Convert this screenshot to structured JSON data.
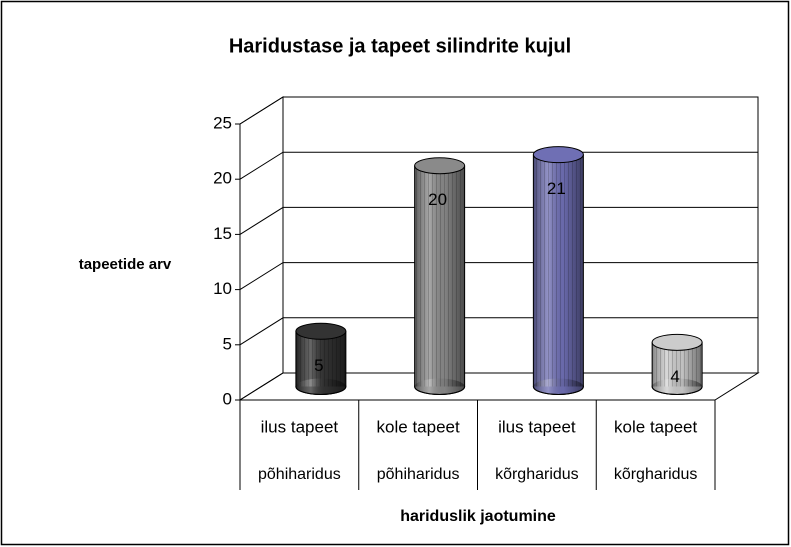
{
  "chart_data": {
    "type": "bar3d-cylinder",
    "title": "Haridustase ja tapeet silindrite kujul",
    "y_label": "tapeetide arv",
    "x_label": "hariduslik jaotumine",
    "categories": [
      [
        "ilus tapeet",
        "põhiharidus"
      ],
      [
        "kole tapeet",
        "põhiharidus"
      ],
      [
        "ilus tapeet",
        "kõrgharidus"
      ],
      [
        "kole tapeet",
        "kõrgharidus"
      ]
    ],
    "values": [
      5,
      20,
      21,
      4
    ],
    "colors": [
      "#333333",
      "#8a8a8a",
      "#6f6fb4",
      "#cccccc"
    ],
    "ylim": [
      0,
      25
    ],
    "yticks": [
      0,
      5,
      10,
      15,
      20,
      25
    ],
    "grid": true
  }
}
